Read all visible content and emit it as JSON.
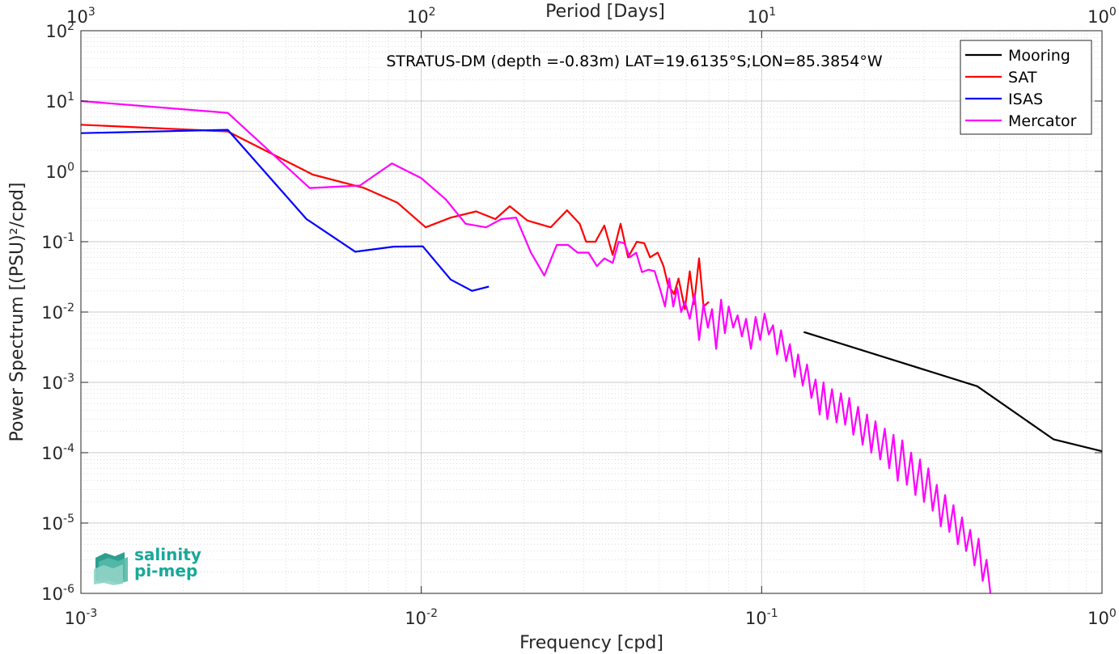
{
  "chart_data": {
    "type": "line",
    "title": "STRATUS-DM (depth =-0.83m) LAT=19.6135°S;LON=85.3854°W",
    "xlabel": "Frequency [cpd]",
    "ylabel": "Power Spectrum [(PSU)²/cpd]",
    "x2label": "Period [Days]",
    "xscale": "log",
    "yscale": "log",
    "xlim": [
      0.001,
      1
    ],
    "ylim": [
      1e-06,
      100
    ],
    "grid": true,
    "legend_position": "top-right",
    "x_ticks": [
      {
        "base": "10",
        "exp": "-3"
      },
      {
        "base": "10",
        "exp": "-2"
      },
      {
        "base": "10",
        "exp": "-1"
      },
      {
        "base": "10",
        "exp": "0"
      }
    ],
    "x2_ticks": [
      {
        "base": "10",
        "exp": "3"
      },
      {
        "base": "10",
        "exp": "2"
      },
      {
        "base": "10",
        "exp": "1"
      },
      {
        "base": "10",
        "exp": "0"
      }
    ],
    "y_ticks": [
      {
        "base": "10",
        "exp": "-6"
      },
      {
        "base": "10",
        "exp": "-5"
      },
      {
        "base": "10",
        "exp": "-4"
      },
      {
        "base": "10",
        "exp": "-3"
      },
      {
        "base": "10",
        "exp": "-2"
      },
      {
        "base": "10",
        "exp": "-1"
      },
      {
        "base": "10",
        "exp": "0"
      },
      {
        "base": "10",
        "exp": "1"
      },
      {
        "base": "10",
        "exp": "2"
      }
    ],
    "series": [
      {
        "name": "Mooring",
        "color": "#000000",
        "x": [
          0.133,
          0.43,
          0.72,
          1.0
        ],
        "y": [
          0.0052,
          0.00088,
          0.000155,
          0.000105
        ]
      },
      {
        "name": "SAT",
        "color": "#ff0000",
        "x": [
          0.001,
          0.0027,
          0.0048,
          0.0068,
          0.0085,
          0.0103,
          0.0122,
          0.0145,
          0.0165,
          0.0182,
          0.0205,
          0.024,
          0.0268,
          0.0292,
          0.0305,
          0.0325,
          0.0345,
          0.0365,
          0.0385,
          0.0405,
          0.043,
          0.0452,
          0.047,
          0.0495,
          0.0515,
          0.053,
          0.0553,
          0.057,
          0.0595,
          0.0615,
          0.0633,
          0.0655,
          0.0675,
          0.07
        ],
        "y": [
          4.6,
          3.7,
          0.9,
          0.58,
          0.36,
          0.16,
          0.22,
          0.27,
          0.21,
          0.32,
          0.2,
          0.16,
          0.28,
          0.18,
          0.1,
          0.1,
          0.17,
          0.065,
          0.18,
          0.06,
          0.1,
          0.095,
          0.06,
          0.07,
          0.045,
          0.025,
          0.018,
          0.03,
          0.011,
          0.038,
          0.013,
          0.058,
          0.012,
          0.014
        ]
      },
      {
        "name": "ISAS",
        "color": "#0000ff",
        "x": [
          0.001,
          0.0027,
          0.0046,
          0.0064,
          0.0083,
          0.0101,
          0.0122,
          0.0141,
          0.0158
        ],
        "y": [
          3.5,
          3.9,
          0.21,
          0.072,
          0.085,
          0.086,
          0.029,
          0.02,
          0.023
        ]
      },
      {
        "name": "Mercator",
        "color": "#ff00ff",
        "x": [
          0.001,
          0.0027,
          0.0047,
          0.0066,
          0.0082,
          0.01,
          0.0118,
          0.0135,
          0.0155,
          0.0172,
          0.019,
          0.021,
          0.023,
          0.025,
          0.027,
          0.0288,
          0.031,
          0.0328,
          0.0345,
          0.0365,
          0.038,
          0.0395,
          0.041,
          0.0428,
          0.0445,
          0.0465,
          0.0485,
          0.0505,
          0.052,
          0.0535,
          0.055,
          0.0565,
          0.058,
          0.0595,
          0.0615,
          0.0635,
          0.0655,
          0.0675,
          0.0695,
          0.0715,
          0.0735,
          0.076,
          0.078,
          0.08,
          0.0825,
          0.085,
          0.0875,
          0.09,
          0.093,
          0.096,
          0.099,
          0.102,
          0.105,
          0.108,
          0.111,
          0.114,
          0.118,
          0.121,
          0.125,
          0.128,
          0.132,
          0.136,
          0.14,
          0.144,
          0.148,
          0.152,
          0.156,
          0.161,
          0.166,
          0.171,
          0.176,
          0.181,
          0.186,
          0.192,
          0.198,
          0.204,
          0.21,
          0.216,
          0.223,
          0.23,
          0.237,
          0.244,
          0.251,
          0.259,
          0.267,
          0.275,
          0.283,
          0.292,
          0.3,
          0.309,
          0.318,
          0.327,
          0.336,
          0.346,
          0.356,
          0.366,
          0.377,
          0.388,
          0.399,
          0.41,
          0.422,
          0.434,
          0.446,
          0.458,
          0.47
        ],
        "y": [
          10.0,
          6.8,
          0.58,
          0.63,
          1.3,
          0.8,
          0.4,
          0.18,
          0.16,
          0.21,
          0.22,
          0.07,
          0.033,
          0.09,
          0.09,
          0.07,
          0.07,
          0.045,
          0.058,
          0.05,
          0.1,
          0.095,
          0.06,
          0.07,
          0.037,
          0.04,
          0.038,
          0.02,
          0.012,
          0.03,
          0.012,
          0.022,
          0.01,
          0.014,
          0.008,
          0.018,
          0.004,
          0.013,
          0.006,
          0.011,
          0.003,
          0.015,
          0.005,
          0.012,
          0.006,
          0.009,
          0.0045,
          0.008,
          0.003,
          0.0085,
          0.004,
          0.0095,
          0.0048,
          0.0065,
          0.0025,
          0.0055,
          0.002,
          0.0035,
          0.0012,
          0.0025,
          0.0009,
          0.0018,
          0.0006,
          0.0011,
          0.00035,
          0.001,
          0.0003,
          0.0008,
          0.00027,
          0.0007,
          0.00025,
          0.0006,
          0.00018,
          0.00045,
          0.00013,
          0.00035,
          0.0001,
          0.00028,
          8e-05,
          0.00022,
          6e-05,
          0.00018,
          4e-05,
          0.00015,
          3.5e-05,
          0.0001,
          2.5e-05,
          8e-05,
          2e-05,
          6e-05,
          1.5e-05,
          3.5e-05,
          9e-06,
          2.5e-05,
          7.5e-06,
          1.8e-05,
          5e-06,
          1.2e-05,
          4e-06,
          8e-06,
          2.5e-06,
          6e-06,
          1.5e-06,
          3e-06,
          1e-06
        ]
      }
    ]
  },
  "logo": {
    "line1": "salinity",
    "line2": "pi-mep",
    "color": "#18a89a"
  }
}
